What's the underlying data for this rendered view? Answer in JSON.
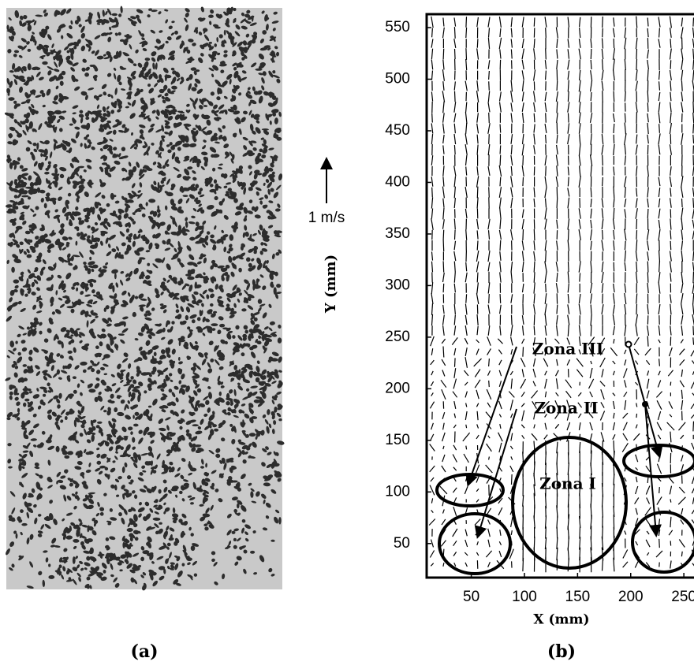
{
  "panel_a": {
    "label": "(a)"
  },
  "chart_data": {
    "type": "quiver",
    "panel_label": "(b)",
    "xlabel": "X (mm)",
    "ylabel": "Y (mm)",
    "scale_label": "1 m/s",
    "xlim": [
      8,
      264
    ],
    "ylim": [
      17,
      563
    ],
    "xticks": [
      50,
      100,
      150,
      200,
      250
    ],
    "yticks": [
      50,
      100,
      150,
      200,
      250,
      300,
      350,
      400,
      450,
      500,
      550
    ],
    "annotations": [
      "Zona III",
      "Zona II",
      "Zona I"
    ]
  }
}
